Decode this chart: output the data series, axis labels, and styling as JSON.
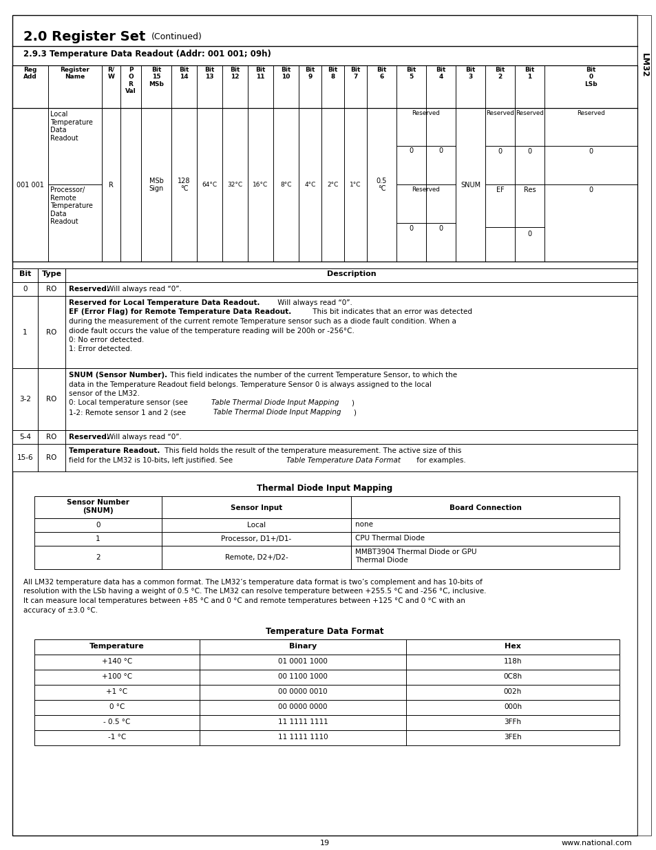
{
  "title_bold": "2.0 Register Set",
  "title_normal": "(Continued)",
  "subtitle": "2.9.3 Temperature Data Readout (Addr: 001 001; 09h)",
  "lm32_label": "LM32",
  "page_number": "19",
  "website": "www.national.com"
}
